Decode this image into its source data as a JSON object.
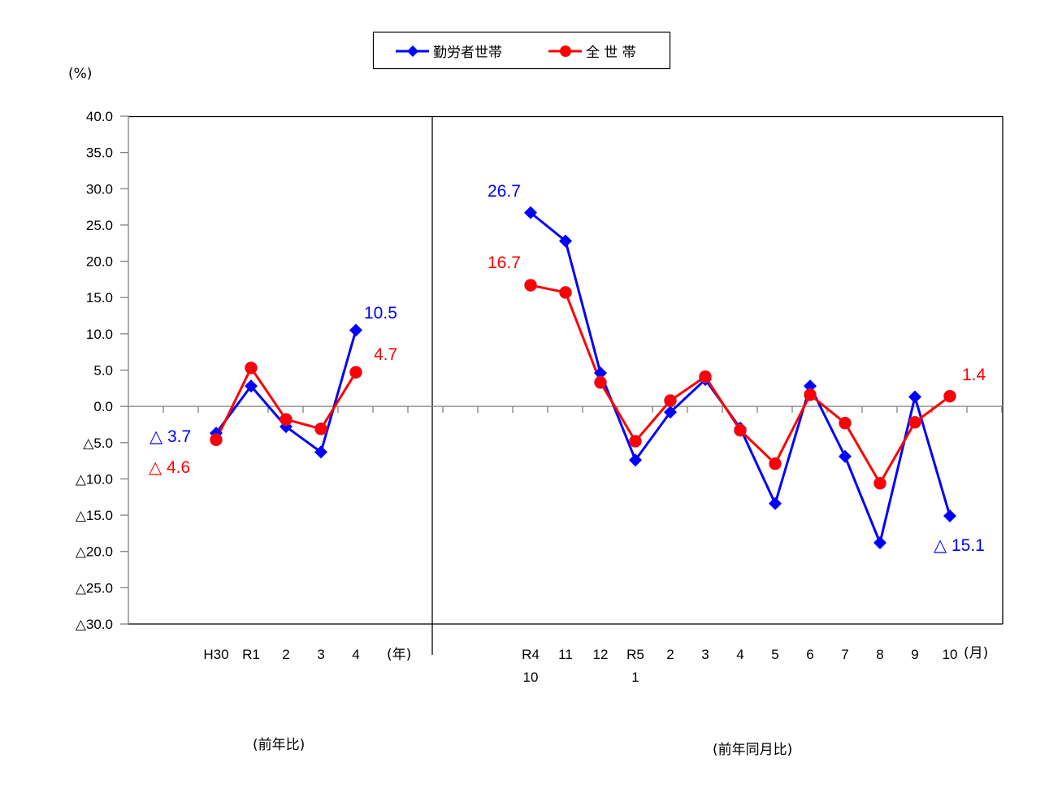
{
  "legend": {
    "items": [
      {
        "label": "勤労者世帯",
        "color": "#0000ff",
        "marker": "diamond"
      },
      {
        "label": "全 世 帯",
        "color": "#ff0000",
        "marker": "circle"
      }
    ]
  },
  "y_unit_label": "(%)",
  "left_section": {
    "unit_label": "(年)",
    "caption": "(前年比)"
  },
  "right_section": {
    "unit_label": "(月)",
    "caption": "(前年同月比)"
  },
  "annotations": [
    {
      "text": "△ 3.7",
      "color": "#0000ff"
    },
    {
      "text": "△ 4.6",
      "color": "#ff0000"
    },
    {
      "text": "10.5",
      "color": "#0000ff"
    },
    {
      "text": "4.7",
      "color": "#ff0000"
    },
    {
      "text": "26.7",
      "color": "#0000ff"
    },
    {
      "text": "16.7",
      "color": "#ff0000"
    },
    {
      "text": "1.4",
      "color": "#ff0000"
    },
    {
      "text": "△ 15.1",
      "color": "#0000ff"
    }
  ],
  "chart_data": {
    "type": "line",
    "title": "",
    "ylabel": "(%)",
    "ylim": [
      -30,
      40
    ],
    "yticks": [
      40,
      35,
      30,
      25,
      20,
      15,
      10,
      5,
      0,
      -5,
      -10,
      -15,
      -20,
      -25,
      -30
    ],
    "ytick_labels": [
      "40.0",
      "35.0",
      "30.0",
      "25.0",
      "20.0",
      "15.0",
      "10.0",
      "5.0",
      "0.0",
      "△5.0",
      "△10.0",
      "△15.0",
      "△20.0",
      "△25.0",
      "△30.0"
    ],
    "grid": false,
    "legend_position": "top-center",
    "panels": [
      {
        "name": "前年比",
        "xlabel": "(年)",
        "categories": [
          "H30",
          "R1",
          "2",
          "3",
          "4"
        ],
        "series": [
          {
            "name": "勤労者世帯",
            "color": "#0000ff",
            "marker": "diamond",
            "values": [
              -3.7,
              2.8,
              -2.8,
              -6.3,
              10.5
            ]
          },
          {
            "name": "全 世 帯",
            "color": "#ff0000",
            "marker": "circle",
            "values": [
              -4.6,
              5.3,
              -1.8,
              -3.1,
              4.7
            ]
          }
        ]
      },
      {
        "name": "前年同月比",
        "xlabel": "(月)",
        "categories": [
          "R4\n10",
          "11",
          "12",
          "R5\n1",
          "2",
          "3",
          "4",
          "5",
          "6",
          "7",
          "8",
          "9",
          "10"
        ],
        "series": [
          {
            "name": "勤労者世帯",
            "color": "#0000ff",
            "marker": "diamond",
            "values": [
              26.7,
              22.8,
              4.6,
              -7.4,
              -0.8,
              3.7,
              -3.0,
              -13.4,
              2.8,
              -6.9,
              -18.8,
              1.3,
              -15.1
            ]
          },
          {
            "name": "全 世 帯",
            "color": "#ff0000",
            "marker": "circle",
            "values": [
              16.7,
              15.7,
              3.3,
              -4.8,
              0.8,
              4.1,
              -3.3,
              -7.9,
              1.6,
              -2.3,
              -10.6,
              -2.2,
              1.4
            ]
          }
        ]
      }
    ]
  }
}
